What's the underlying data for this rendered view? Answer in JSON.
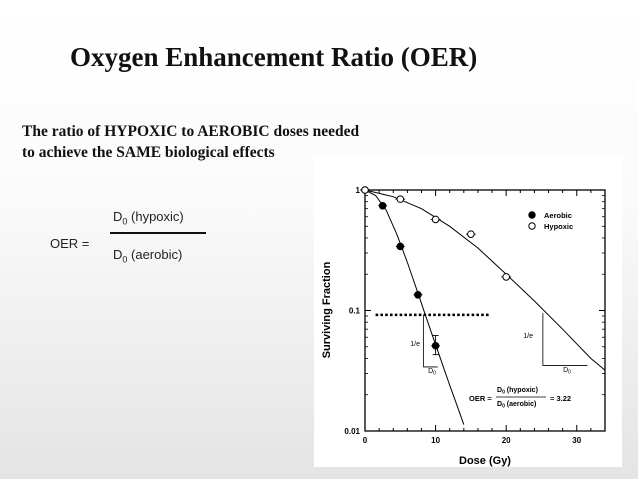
{
  "slide": {
    "title": "Oxygen Enhancement Ratio (OER)",
    "intro": "The ratio of HYPOXIC to AEROBIC doses needed to achieve the SAME biological effects"
  },
  "formula": {
    "lhs": "OER =",
    "numerator_symbol": "D",
    "numerator_sub": "0",
    "numerator_label": " (hypoxic)",
    "denominator_symbol": "D",
    "denominator_sub": "0",
    "denominator_label": " (aerobic)"
  },
  "chart_data": {
    "type": "scatter",
    "xlabel": "Dose (Gy)",
    "ylabel": "Surviving Fraction",
    "xlim": [
      0,
      34
    ],
    "ylim": [
      0.01,
      1
    ],
    "yscale": "log",
    "x_ticks": [
      0,
      10,
      20,
      30
    ],
    "x_tick_labels": [
      "0",
      "10",
      "20",
      "30"
    ],
    "y_ticks": [
      0.01,
      0.1,
      1
    ],
    "y_tick_labels": [
      "0.01",
      "0.1",
      "1"
    ],
    "legend": "top-right",
    "colors": {
      "aerobic": "#000000",
      "hypoxic": "#ffffff",
      "axes": "#000000",
      "reference_line": "#000000"
    },
    "series": [
      {
        "name": "Aerobic",
        "marker": "filled-circle",
        "points": [
          {
            "x": 0,
            "y": 1.0
          },
          {
            "x": 2.5,
            "y": 0.74
          },
          {
            "x": 5,
            "y": 0.34
          },
          {
            "x": 7.5,
            "y": 0.135
          },
          {
            "x": 10,
            "y": 0.051
          }
        ],
        "error_bars": [
          {
            "x": 10,
            "low": 0.043,
            "high": 0.062
          }
        ],
        "curve": [
          {
            "x": 0,
            "y": 1.0
          },
          {
            "x": 1.5,
            "y": 0.9
          },
          {
            "x": 3,
            "y": 0.68
          },
          {
            "x": 4.5,
            "y": 0.43
          },
          {
            "x": 6,
            "y": 0.25
          },
          {
            "x": 7.5,
            "y": 0.14
          },
          {
            "x": 9,
            "y": 0.077
          },
          {
            "x": 10.5,
            "y": 0.043
          },
          {
            "x": 12,
            "y": 0.024
          },
          {
            "x": 13,
            "y": 0.0165
          },
          {
            "x": 14,
            "y": 0.0113
          }
        ]
      },
      {
        "name": "Hypoxic",
        "marker": "open-circle",
        "points": [
          {
            "x": 0,
            "y": 1.0
          },
          {
            "x": 5,
            "y": 0.84
          },
          {
            "x": 10,
            "y": 0.57
          },
          {
            "x": 15,
            "y": 0.43
          },
          {
            "x": 20,
            "y": 0.19
          }
        ],
        "curve": [
          {
            "x": 0,
            "y": 1.0
          },
          {
            "x": 4,
            "y": 0.88
          },
          {
            "x": 8,
            "y": 0.7
          },
          {
            "x": 12,
            "y": 0.5
          },
          {
            "x": 16,
            "y": 0.33
          },
          {
            "x": 20,
            "y": 0.2
          },
          {
            "x": 24,
            "y": 0.12
          },
          {
            "x": 28,
            "y": 0.07
          },
          {
            "x": 32,
            "y": 0.04
          },
          {
            "x": 34,
            "y": 0.032
          }
        ]
      }
    ],
    "reference_line": {
      "y": 0.092,
      "x_start": 1.5,
      "x_end": 17.8,
      "style": "dotted"
    },
    "annotations": {
      "aerobic_triangle": {
        "x1": 8.3,
        "x2": 10.3,
        "y_top": 0.092,
        "y_bottom": 0.034,
        "vertical_label": "1/e",
        "horizontal_label": "D",
        "horizontal_sub": "0"
      },
      "hypoxic_triangle": {
        "x1": 25.2,
        "x2": 31.5,
        "y_top": 0.095,
        "y_bottom": 0.035,
        "vertical_label": "1/e",
        "horizontal_label": "D",
        "horizontal_sub": "0"
      },
      "oer": {
        "lhs": "OER =",
        "numerator": "D",
        "numerator_sub": "0",
        "numerator_label": " (hypoxic)",
        "denominator": "D",
        "denominator_sub": "0",
        "denominator_label": " (aerobic)",
        "rhs": "= 3.22"
      }
    }
  }
}
